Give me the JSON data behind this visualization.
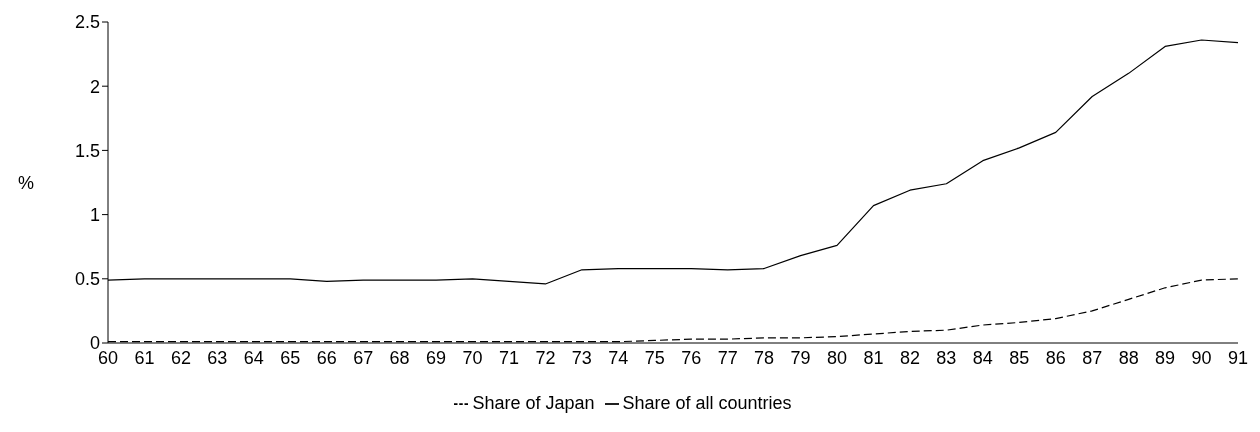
{
  "chart_data": {
    "type": "line",
    "ylabel": "%",
    "categories": [
      "60",
      "61",
      "62",
      "63",
      "64",
      "65",
      "66",
      "67",
      "68",
      "69",
      "70",
      "71",
      "72",
      "73",
      "74",
      "75",
      "76",
      "77",
      "78",
      "79",
      "80",
      "81",
      "82",
      "83",
      "84",
      "85",
      "86",
      "87",
      "88",
      "89",
      "90",
      "91"
    ],
    "series": [
      {
        "name": "Share of all countries",
        "color": "#000000",
        "line_style": "solid",
        "values": [
          0.49,
          0.5,
          0.5,
          0.5,
          0.5,
          0.5,
          0.48,
          0.49,
          0.49,
          0.49,
          0.5,
          0.48,
          0.46,
          0.57,
          0.58,
          0.58,
          0.58,
          0.57,
          0.58,
          0.68,
          0.76,
          1.07,
          1.19,
          1.24,
          1.42,
          1.52,
          1.64,
          1.92,
          2.1,
          2.31,
          2.36,
          2.34
        ]
      },
      {
        "name": "Share of Japan",
        "color": "#000000",
        "line_style": "dashed",
        "values": [
          0.01,
          0.01,
          0.01,
          0.01,
          0.01,
          0.01,
          0.01,
          0.01,
          0.01,
          0.01,
          0.01,
          0.01,
          0.01,
          0.01,
          0.01,
          0.02,
          0.03,
          0.03,
          0.04,
          0.04,
          0.05,
          0.07,
          0.09,
          0.1,
          0.14,
          0.16,
          0.19,
          0.25,
          0.34,
          0.43,
          0.49,
          0.5
        ]
      }
    ],
    "ylim": [
      0,
      2.5
    ],
    "yticks": [
      0,
      0.5,
      1,
      1.5,
      2,
      2.5
    ],
    "grid": false,
    "legend": "bottom",
    "marker": "none"
  }
}
